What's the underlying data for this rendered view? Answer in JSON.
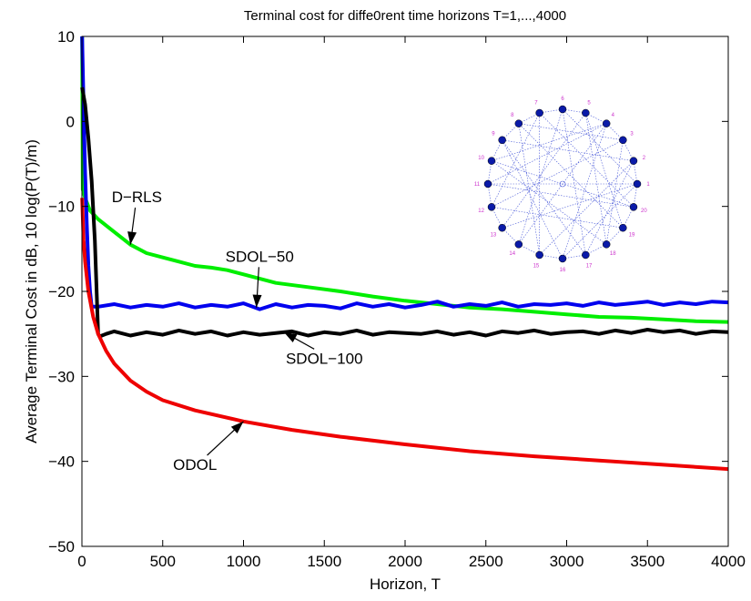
{
  "chart_data": {
    "type": "line",
    "title": "Terminal cost for diffe0rent time horizons T=1,...,4000",
    "xlabel": "Horizon, T",
    "ylabel": "Average Terminal Cost in dB, 10 log(P(T)/m)",
    "xlim": [
      0,
      4000
    ],
    "ylim": [
      -50,
      10
    ],
    "xticks": [
      0,
      500,
      1000,
      1500,
      2000,
      2500,
      3000,
      3500,
      4000
    ],
    "yticks": [
      -50,
      -40,
      -30,
      -20,
      -10,
      0,
      10
    ],
    "grid": false,
    "series": [
      {
        "name": "D-RLS",
        "color": "#00ee00",
        "x": [
          1,
          5,
          20,
          50,
          100,
          200,
          300,
          400,
          500,
          600,
          700,
          800,
          900,
          1000,
          1200,
          1400,
          1600,
          1800,
          2000,
          2200,
          2400,
          2600,
          2800,
          3000,
          3200,
          3400,
          3600,
          3800,
          4000
        ],
        "y": [
          10,
          -8,
          -9,
          -10.5,
          -11.5,
          -13,
          -14.5,
          -15.5,
          -16,
          -16.5,
          -17,
          -17.2,
          -17.5,
          -18,
          -19,
          -19.5,
          -20,
          -20.6,
          -21.1,
          -21.5,
          -21.9,
          -22.1,
          -22.4,
          -22.7,
          -23,
          -23.1,
          -23.3,
          -23.5,
          -23.6
        ]
      },
      {
        "name": "SDOL-50",
        "color": "#0000ee",
        "x": [
          1,
          10,
          20,
          30,
          40,
          50,
          60,
          100,
          200,
          300,
          400,
          500,
          600,
          700,
          800,
          900,
          1000,
          1100,
          1200,
          1300,
          1400,
          1500,
          1600,
          1700,
          1800,
          1900,
          2000,
          2100,
          2200,
          2300,
          2400,
          2500,
          2600,
          2700,
          2800,
          2900,
          3000,
          3100,
          3200,
          3300,
          3400,
          3500,
          3600,
          3700,
          3800,
          3900,
          4000
        ],
        "y": [
          10,
          2,
          -6,
          -12,
          -17,
          -20,
          -21.8,
          -21.8,
          -21.5,
          -21.9,
          -21.6,
          -21.8,
          -21.4,
          -21.9,
          -21.6,
          -21.8,
          -21.4,
          -22.1,
          -21.5,
          -21.9,
          -21.6,
          -21.7,
          -22,
          -21.4,
          -21.8,
          -21.5,
          -21.9,
          -21.6,
          -21.2,
          -21.8,
          -21.5,
          -21.7,
          -21.3,
          -21.8,
          -21.5,
          -21.6,
          -21.4,
          -21.7,
          -21.3,
          -21.6,
          -21.4,
          -21.2,
          -21.6,
          -21.3,
          -21.5,
          -21.2,
          -21.3
        ]
      },
      {
        "name": "SDOL-100",
        "color": "#000000",
        "x": [
          1,
          20,
          40,
          60,
          80,
          100,
          110,
          150,
          200,
          300,
          400,
          500,
          600,
          700,
          800,
          900,
          1000,
          1100,
          1200,
          1300,
          1400,
          1500,
          1600,
          1700,
          1800,
          1900,
          2000,
          2100,
          2200,
          2300,
          2400,
          2500,
          2600,
          2700,
          2800,
          2900,
          3000,
          3100,
          3200,
          3300,
          3400,
          3500,
          3600,
          3700,
          3800,
          3900,
          4000
        ],
        "y": [
          4,
          2,
          -2,
          -7,
          -14,
          -25,
          -25.3,
          -25,
          -24.7,
          -25.2,
          -24.8,
          -25.1,
          -24.6,
          -25,
          -24.7,
          -25.2,
          -24.8,
          -25.1,
          -24.9,
          -24.7,
          -25.2,
          -24.8,
          -25,
          -24.6,
          -25.1,
          -24.8,
          -24.9,
          -25,
          -24.7,
          -25.1,
          -24.8,
          -25.2,
          -24.7,
          -24.9,
          -24.6,
          -25,
          -24.8,
          -24.7,
          -25,
          -24.6,
          -24.9,
          -24.5,
          -24.8,
          -24.6,
          -25,
          -24.7,
          -24.8
        ]
      },
      {
        "name": "ODOL",
        "color": "#ee0000",
        "x": [
          1,
          10,
          20,
          40,
          70,
          100,
          150,
          200,
          300,
          400,
          500,
          700,
          1000,
          1300,
          1600,
          2000,
          2400,
          2800,
          3200,
          3600,
          4000
        ],
        "y": [
          -9,
          -14,
          -16.5,
          -20,
          -23,
          -25,
          -27,
          -28.5,
          -30.5,
          -31.8,
          -32.8,
          -34,
          -35.3,
          -36.3,
          -37.1,
          -38,
          -38.8,
          -39.4,
          -39.9,
          -40.4,
          -40.9
        ]
      }
    ],
    "annotations": [
      {
        "text": "D−RLS",
        "x": 340,
        "y": -9.5,
        "target_x": 300,
        "target_y": -14.5
      },
      {
        "text": "SDOL−50",
        "x": 1100,
        "y": -16.5,
        "target_x": 1080,
        "target_y": -21.9
      },
      {
        "text": "SDOL−100",
        "x": 1500,
        "y": -28.5,
        "target_x": 1250,
        "target_y": -24.8
      },
      {
        "text": "ODOL",
        "x": 700,
        "y": -41,
        "target_x": 1000,
        "target_y": -35.3
      }
    ],
    "inset": {
      "node_color": "#0a1aa8",
      "edge_color": "#4a5ad8",
      "label_color": "#cc33cc",
      "node_labels": [
        "1",
        "2",
        "3",
        "4",
        "5",
        "6",
        "7",
        "8",
        "9",
        "10",
        "11",
        "12",
        "13",
        "14",
        "15",
        "16",
        "17",
        "18",
        "19",
        "20"
      ]
    }
  }
}
